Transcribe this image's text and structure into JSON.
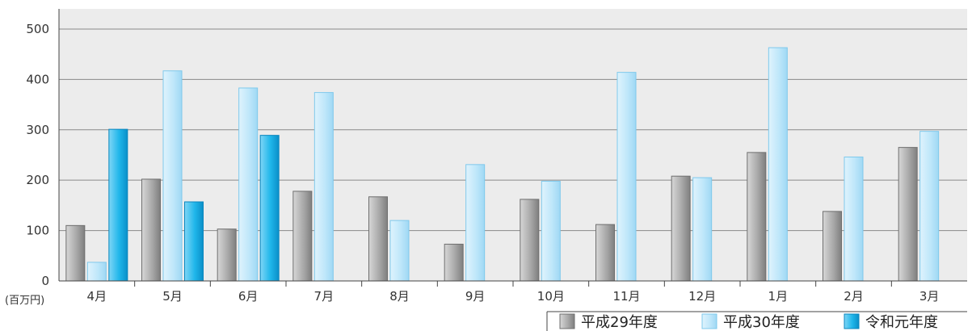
{
  "chart_data": {
    "type": "bar",
    "unit_label": "(百万円)",
    "categories": [
      "4月",
      "5月",
      "6月",
      "7月",
      "8月",
      "9月",
      "10月",
      "11月",
      "12月",
      "1月",
      "2月",
      "3月"
    ],
    "ylim": [
      0,
      540
    ],
    "yticks": [
      0,
      100,
      200,
      300,
      400,
      500
    ],
    "grid": true,
    "legend_position": "bottom-right",
    "series": [
      {
        "name": "平成29年度",
        "color": "#a6a6a6",
        "values": [
          110,
          202,
          103,
          178,
          167,
          73,
          162,
          112,
          208,
          255,
          138,
          265
        ]
      },
      {
        "name": "平成30年度",
        "color": "#b9e4f8",
        "values": [
          37,
          417,
          383,
          374,
          120,
          231,
          198,
          414,
          205,
          463,
          246,
          297
        ]
      },
      {
        "name": "令和元年度",
        "color": "#1fb6ea",
        "values": [
          301,
          157,
          289,
          null,
          null,
          null,
          null,
          null,
          null,
          null,
          null,
          null
        ]
      }
    ]
  }
}
